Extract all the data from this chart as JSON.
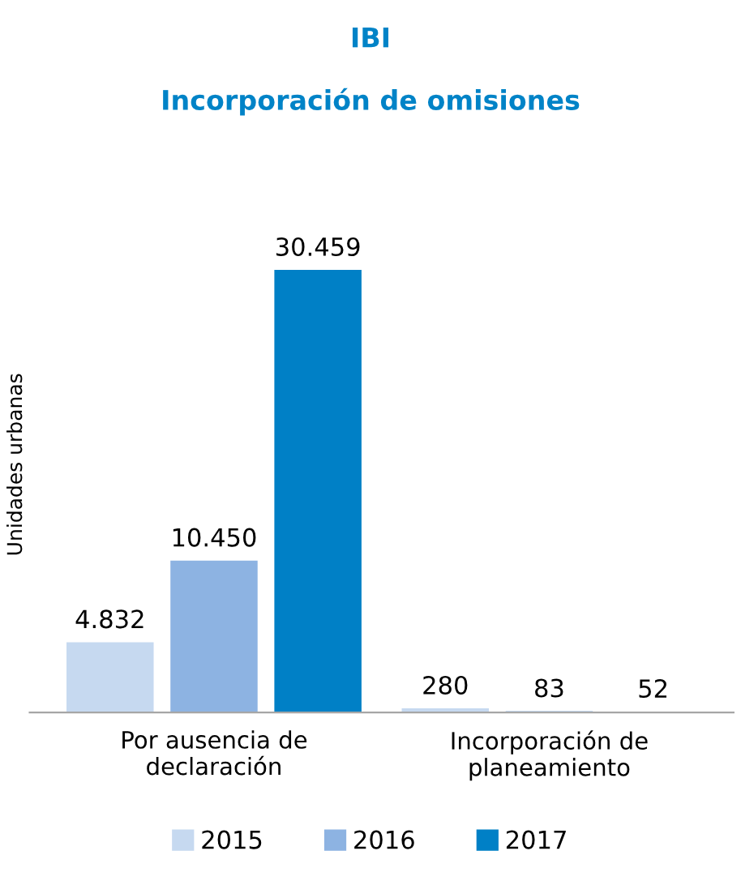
{
  "chart_data": {
    "type": "bar",
    "title": "IBI",
    "subtitle": "Incorporación de omisiones",
    "ylabel": "Unidades urbanas",
    "categories": [
      "Por ausencia de\ndeclaración",
      "Incorporación de\nplaneamiento"
    ],
    "series": [
      {
        "name": "2015",
        "color": "#c6d9f0",
        "values": [
          4832,
          280
        ],
        "value_labels": [
          "4.832",
          "280"
        ]
      },
      {
        "name": "2016",
        "color": "#8db3e2",
        "values": [
          10450,
          83
        ],
        "value_labels": [
          "10.450",
          "83"
        ]
      },
      {
        "name": "2017",
        "color": "#0080c6",
        "values": [
          30459,
          52
        ],
        "value_labels": [
          "30.459",
          "52"
        ]
      }
    ],
    "legend": "bottom",
    "grid": false
  }
}
